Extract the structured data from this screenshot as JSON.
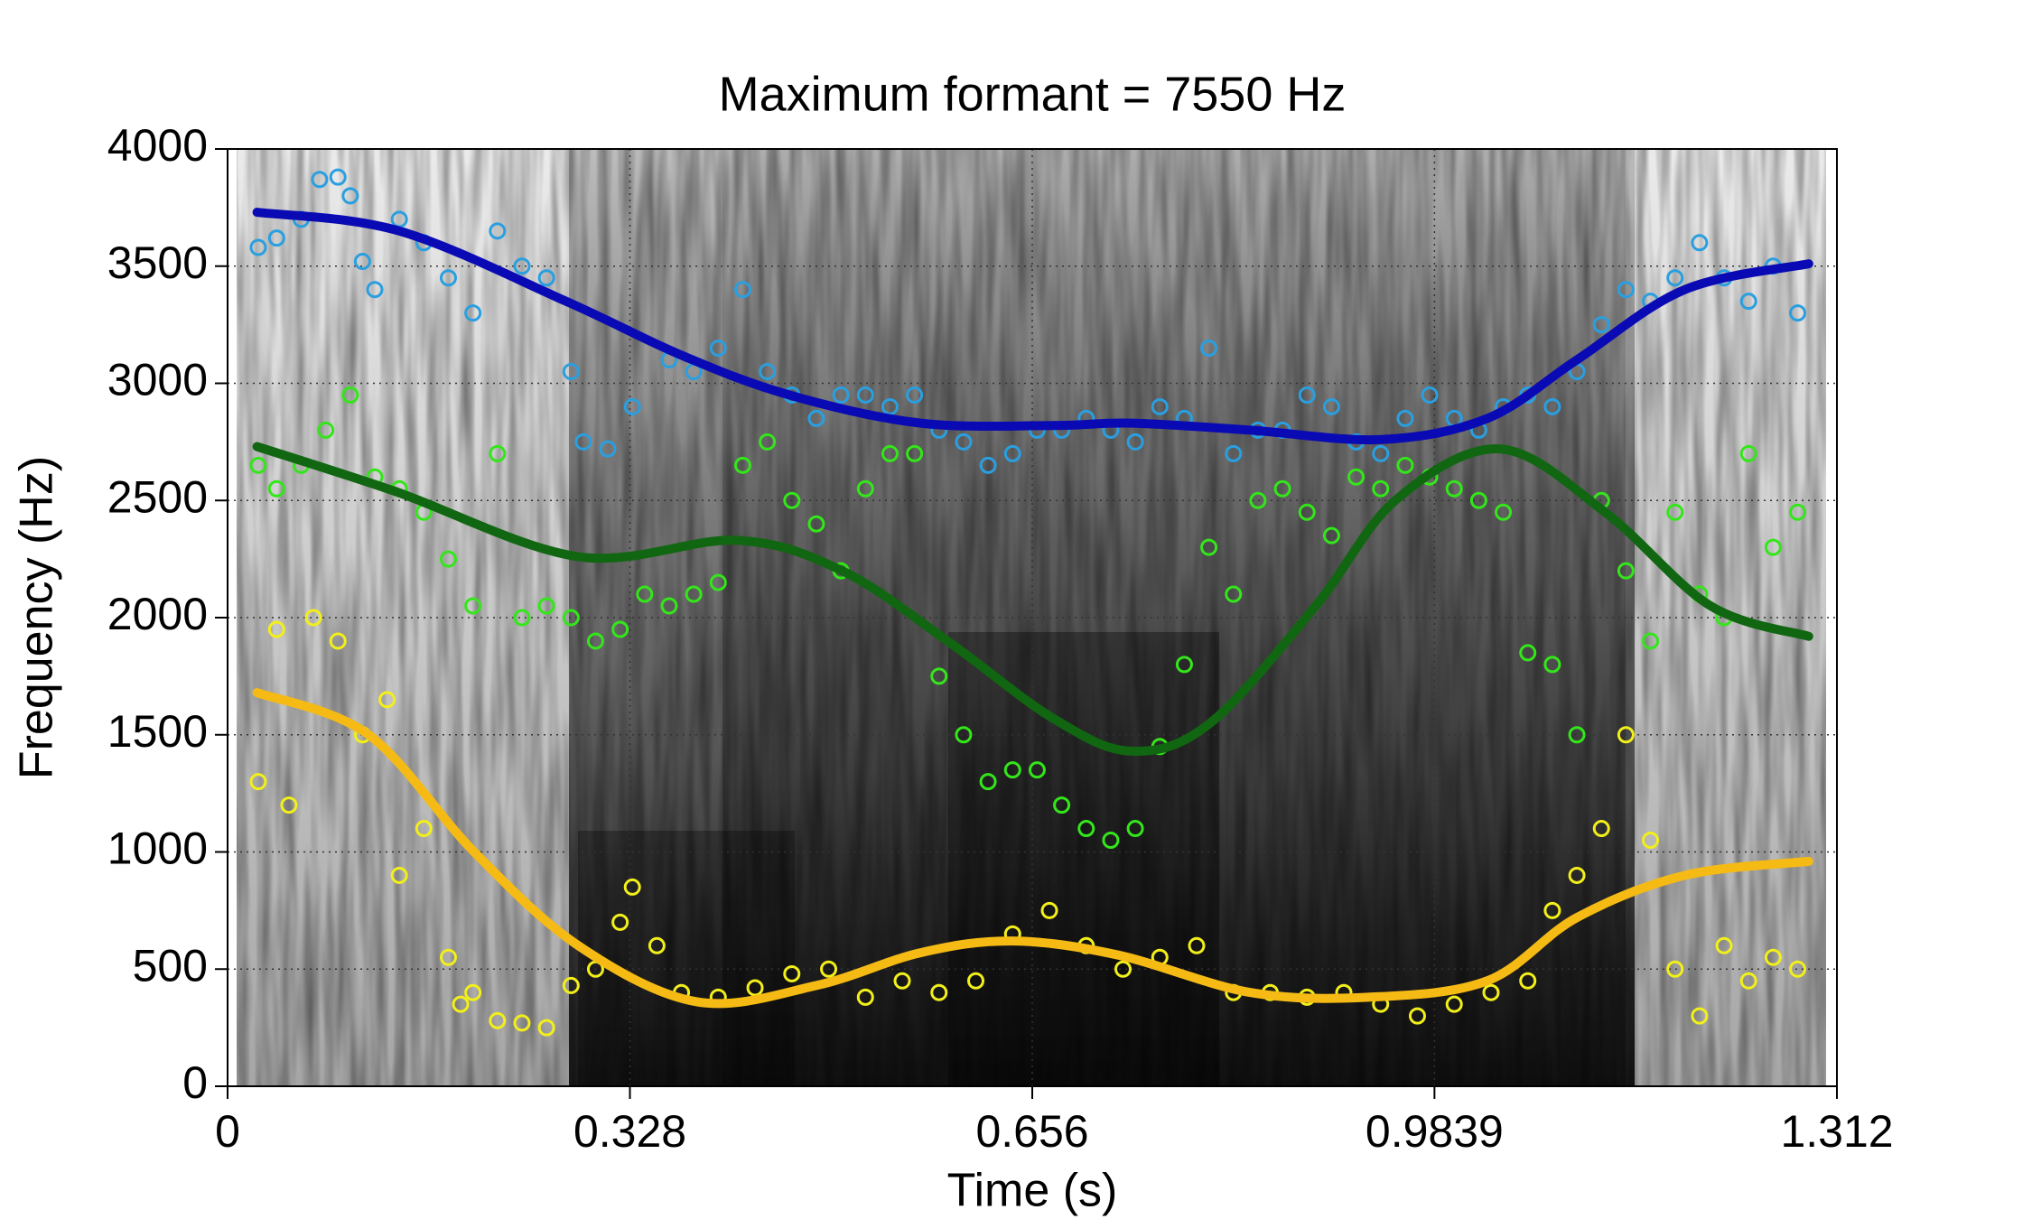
{
  "chart_data": {
    "type": "formant",
    "title": "Maximum formant = 7550 Hz",
    "x_label": "Time (s)",
    "y_label": "Frequency (Hz)",
    "xlim": [
      0,
      1.312
    ],
    "xticks": [
      0,
      0.328,
      0.656,
      0.9839,
      1.312
    ],
    "ylim": [
      0,
      4000
    ],
    "yticks": [
      0,
      500,
      1000,
      1500,
      2000,
      2500,
      3000,
      3500,
      4000
    ],
    "grid": true,
    "series": [
      {
        "style": "points",
        "color": "#2a9fe0",
        "x": [
          0.025,
          0.04,
          0.06,
          0.075,
          0.09,
          0.1,
          0.11,
          0.12,
          0.14,
          0.16,
          0.18,
          0.2,
          0.22,
          0.24,
          0.26,
          0.28,
          0.29,
          0.31,
          0.33,
          0.36,
          0.38,
          0.4,
          0.42,
          0.44,
          0.46,
          0.48,
          0.5,
          0.52,
          0.54,
          0.56,
          0.58,
          0.6,
          0.62,
          0.64,
          0.66,
          0.68,
          0.7,
          0.72,
          0.74,
          0.76,
          0.78,
          0.8,
          0.82,
          0.84,
          0.86,
          0.88,
          0.9,
          0.92,
          0.94,
          0.96,
          0.98,
          1.0,
          1.02,
          1.04,
          1.06,
          1.08,
          1.1,
          1.12,
          1.14,
          1.16,
          1.18,
          1.2,
          1.22,
          1.24,
          1.26,
          1.28
        ],
        "values": [
          3580,
          3620,
          3700,
          3870,
          3880,
          3800,
          3520,
          3400,
          3700,
          3600,
          3450,
          3300,
          3650,
          3500,
          3450,
          3050,
          2750,
          2720,
          2900,
          3100,
          3050,
          3150,
          3400,
          3050,
          2950,
          2850,
          2950,
          2950,
          2900,
          2950,
          2800,
          2750,
          2650,
          2700,
          2800,
          2800,
          2850,
          2800,
          2750,
          2900,
          2850,
          3150,
          2700,
          2800,
          2800,
          2950,
          2900,
          2750,
          2700,
          2850,
          2950,
          2850,
          2800,
          2900,
          2950,
          2900,
          3050,
          3250,
          3400,
          3350,
          3450,
          3600,
          3450,
          3350,
          3500,
          3300
        ]
      },
      {
        "style": "points",
        "color": "#33e61a",
        "x": [
          0.025,
          0.04,
          0.06,
          0.08,
          0.1,
          0.12,
          0.14,
          0.16,
          0.18,
          0.2,
          0.22,
          0.24,
          0.26,
          0.28,
          0.3,
          0.32,
          0.34,
          0.36,
          0.38,
          0.4,
          0.42,
          0.44,
          0.46,
          0.48,
          0.5,
          0.52,
          0.54,
          0.56,
          0.58,
          0.6,
          0.62,
          0.64,
          0.66,
          0.68,
          0.7,
          0.72,
          0.74,
          0.76,
          0.78,
          0.8,
          0.82,
          0.84,
          0.86,
          0.88,
          0.9,
          0.92,
          0.94,
          0.96,
          0.98,
          1.0,
          1.02,
          1.04,
          1.06,
          1.08,
          1.1,
          1.12,
          1.14,
          1.16,
          1.18,
          1.2,
          1.22,
          1.24,
          1.26,
          1.28
        ],
        "values": [
          2650,
          2550,
          2650,
          2800,
          2950,
          2600,
          2550,
          2450,
          2250,
          2050,
          2700,
          2000,
          2050,
          2000,
          1900,
          1950,
          2100,
          2050,
          2100,
          2150,
          2650,
          2750,
          2500,
          2400,
          2200,
          2550,
          2700,
          2700,
          1750,
          1500,
          1300,
          1350,
          1350,
          1200,
          1100,
          1050,
          1100,
          1450,
          1800,
          2300,
          2100,
          2500,
          2550,
          2450,
          2350,
          2600,
          2550,
          2650,
          2600,
          2550,
          2500,
          2450,
          1850,
          1800,
          1500,
          2500,
          2200,
          1900,
          2450,
          2100,
          2000,
          2700,
          2300,
          2450
        ]
      },
      {
        "style": "points",
        "color": "#f2ef1a",
        "x": [
          0.025,
          0.04,
          0.05,
          0.07,
          0.09,
          0.11,
          0.13,
          0.14,
          0.16,
          0.18,
          0.19,
          0.2,
          0.22,
          0.24,
          0.26,
          0.28,
          0.3,
          0.32,
          0.33,
          0.35,
          0.37,
          0.4,
          0.43,
          0.46,
          0.49,
          0.52,
          0.55,
          0.58,
          0.61,
          0.64,
          0.67,
          0.7,
          0.73,
          0.76,
          0.79,
          0.82,
          0.85,
          0.88,
          0.91,
          0.94,
          0.97,
          1.0,
          1.03,
          1.06,
          1.08,
          1.1,
          1.12,
          1.14,
          1.16,
          1.18,
          1.2,
          1.22,
          1.24,
          1.26,
          1.28
        ],
        "values": [
          1300,
          1950,
          1200,
          2000,
          1900,
          1500,
          1650,
          900,
          1100,
          550,
          350,
          400,
          280,
          270,
          250,
          430,
          500,
          700,
          850,
          600,
          400,
          380,
          420,
          480,
          500,
          380,
          450,
          400,
          450,
          650,
          750,
          600,
          500,
          550,
          600,
          400,
          400,
          380,
          400,
          350,
          300,
          350,
          400,
          450,
          750,
          900,
          1100,
          1500,
          1050,
          500,
          300,
          600,
          450,
          550,
          500
        ]
      },
      {
        "style": "line",
        "color": "#0a0ab4",
        "x": [
          0.024,
          0.14,
          0.276,
          0.37,
          0.458,
          0.565,
          0.673,
          0.737,
          0.834,
          0.94,
          1.027,
          1.1,
          1.188,
          1.289
        ],
        "values": [
          3730,
          3650,
          3350,
          3120,
          2950,
          2830,
          2820,
          2830,
          2800,
          2760,
          2850,
          3100,
          3400,
          3510
        ]
      },
      {
        "style": "line",
        "color": "#116611",
        "x": [
          0.024,
          0.136,
          0.286,
          0.415,
          0.501,
          0.587,
          0.673,
          0.737,
          0.801,
          0.887,
          0.952,
          1.037,
          1.123,
          1.209,
          1.289
        ],
        "values": [
          2730,
          2540,
          2260,
          2330,
          2200,
          1900,
          1570,
          1430,
          1550,
          2050,
          2500,
          2720,
          2450,
          2050,
          1920
        ]
      },
      {
        "style": "line",
        "color": "#f5bb14",
        "x": [
          0.024,
          0.115,
          0.201,
          0.286,
          0.383,
          0.48,
          0.565,
          0.64,
          0.726,
          0.834,
          0.93,
          1.027,
          1.1,
          1.188,
          1.289
        ],
        "values": [
          1680,
          1500,
          1000,
          600,
          360,
          430,
          570,
          620,
          560,
          400,
          380,
          450,
          720,
          900,
          960
        ]
      }
    ]
  }
}
